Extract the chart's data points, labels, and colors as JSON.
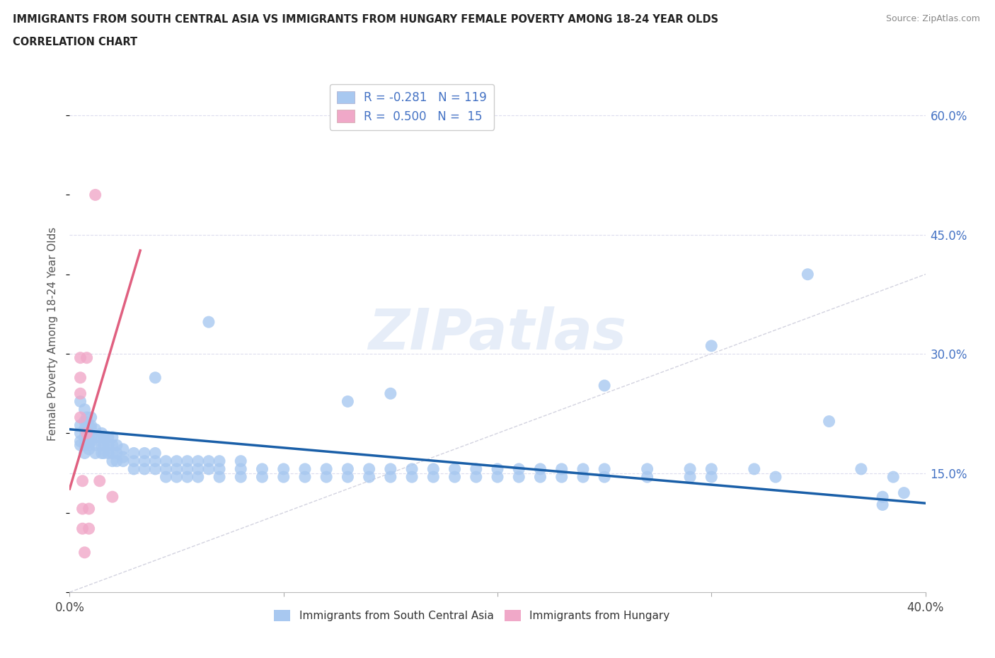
{
  "title_line1": "IMMIGRANTS FROM SOUTH CENTRAL ASIA VS IMMIGRANTS FROM HUNGARY FEMALE POVERTY AMONG 18-24 YEAR OLDS",
  "title_line2": "CORRELATION CHART",
  "source": "Source: ZipAtlas.com",
  "ylabel": "Female Poverty Among 18-24 Year Olds",
  "watermark": "ZIPatlas",
  "color_asia": "#a8c8f0",
  "color_hungary": "#f0a8c8",
  "color_asia_line": "#1a5fa8",
  "color_hungary_line": "#e06080",
  "color_diag": "#c8c8d8",
  "xlim": [
    0.0,
    0.4
  ],
  "ylim": [
    0.0,
    0.65
  ],
  "y_ticks": [
    0.15,
    0.3,
    0.45,
    0.6
  ],
  "x_ticks": [
    0.0,
    0.1,
    0.2,
    0.3,
    0.4
  ],
  "asia_line": [
    0.0,
    0.4,
    0.205,
    0.112
  ],
  "hungary_line_pts": [
    0.0,
    0.13,
    0.033,
    0.43
  ],
  "scatter_asia": [
    [
      0.005,
      0.24
    ],
    [
      0.005,
      0.21
    ],
    [
      0.005,
      0.2
    ],
    [
      0.005,
      0.19
    ],
    [
      0.005,
      0.185
    ],
    [
      0.007,
      0.23
    ],
    [
      0.007,
      0.215
    ],
    [
      0.007,
      0.205
    ],
    [
      0.007,
      0.195
    ],
    [
      0.007,
      0.185
    ],
    [
      0.007,
      0.175
    ],
    [
      0.008,
      0.22
    ],
    [
      0.008,
      0.21
    ],
    [
      0.008,
      0.2
    ],
    [
      0.008,
      0.19
    ],
    [
      0.009,
      0.21
    ],
    [
      0.009,
      0.205
    ],
    [
      0.009,
      0.195
    ],
    [
      0.009,
      0.185
    ],
    [
      0.009,
      0.18
    ],
    [
      0.01,
      0.22
    ],
    [
      0.01,
      0.21
    ],
    [
      0.01,
      0.205
    ],
    [
      0.01,
      0.195
    ],
    [
      0.01,
      0.19
    ],
    [
      0.012,
      0.205
    ],
    [
      0.012,
      0.195
    ],
    [
      0.012,
      0.185
    ],
    [
      0.012,
      0.175
    ],
    [
      0.015,
      0.2
    ],
    [
      0.015,
      0.195
    ],
    [
      0.015,
      0.185
    ],
    [
      0.015,
      0.175
    ],
    [
      0.016,
      0.195
    ],
    [
      0.016,
      0.185
    ],
    [
      0.016,
      0.175
    ],
    [
      0.018,
      0.195
    ],
    [
      0.018,
      0.185
    ],
    [
      0.018,
      0.175
    ],
    [
      0.02,
      0.195
    ],
    [
      0.02,
      0.185
    ],
    [
      0.02,
      0.175
    ],
    [
      0.02,
      0.165
    ],
    [
      0.022,
      0.185
    ],
    [
      0.022,
      0.175
    ],
    [
      0.022,
      0.165
    ],
    [
      0.025,
      0.18
    ],
    [
      0.025,
      0.17
    ],
    [
      0.025,
      0.165
    ],
    [
      0.03,
      0.175
    ],
    [
      0.03,
      0.165
    ],
    [
      0.03,
      0.155
    ],
    [
      0.035,
      0.175
    ],
    [
      0.035,
      0.165
    ],
    [
      0.035,
      0.155
    ],
    [
      0.04,
      0.27
    ],
    [
      0.04,
      0.175
    ],
    [
      0.04,
      0.165
    ],
    [
      0.04,
      0.155
    ],
    [
      0.045,
      0.165
    ],
    [
      0.045,
      0.155
    ],
    [
      0.045,
      0.145
    ],
    [
      0.05,
      0.165
    ],
    [
      0.05,
      0.155
    ],
    [
      0.05,
      0.145
    ],
    [
      0.055,
      0.165
    ],
    [
      0.055,
      0.155
    ],
    [
      0.055,
      0.145
    ],
    [
      0.06,
      0.165
    ],
    [
      0.06,
      0.155
    ],
    [
      0.06,
      0.145
    ],
    [
      0.065,
      0.34
    ],
    [
      0.065,
      0.165
    ],
    [
      0.065,
      0.155
    ],
    [
      0.07,
      0.165
    ],
    [
      0.07,
      0.155
    ],
    [
      0.07,
      0.145
    ],
    [
      0.08,
      0.165
    ],
    [
      0.08,
      0.155
    ],
    [
      0.08,
      0.145
    ],
    [
      0.09,
      0.155
    ],
    [
      0.09,
      0.145
    ],
    [
      0.1,
      0.155
    ],
    [
      0.1,
      0.145
    ],
    [
      0.11,
      0.155
    ],
    [
      0.11,
      0.145
    ],
    [
      0.12,
      0.155
    ],
    [
      0.12,
      0.145
    ],
    [
      0.13,
      0.24
    ],
    [
      0.13,
      0.155
    ],
    [
      0.13,
      0.145
    ],
    [
      0.14,
      0.155
    ],
    [
      0.14,
      0.145
    ],
    [
      0.15,
      0.25
    ],
    [
      0.15,
      0.155
    ],
    [
      0.15,
      0.145
    ],
    [
      0.16,
      0.155
    ],
    [
      0.16,
      0.145
    ],
    [
      0.17,
      0.155
    ],
    [
      0.17,
      0.145
    ],
    [
      0.18,
      0.155
    ],
    [
      0.18,
      0.145
    ],
    [
      0.19,
      0.155
    ],
    [
      0.19,
      0.145
    ],
    [
      0.2,
      0.155
    ],
    [
      0.2,
      0.145
    ],
    [
      0.21,
      0.155
    ],
    [
      0.21,
      0.145
    ],
    [
      0.22,
      0.155
    ],
    [
      0.22,
      0.145
    ],
    [
      0.23,
      0.155
    ],
    [
      0.23,
      0.145
    ],
    [
      0.24,
      0.155
    ],
    [
      0.24,
      0.145
    ],
    [
      0.25,
      0.26
    ],
    [
      0.25,
      0.155
    ],
    [
      0.25,
      0.145
    ],
    [
      0.27,
      0.155
    ],
    [
      0.27,
      0.145
    ],
    [
      0.29,
      0.155
    ],
    [
      0.29,
      0.145
    ],
    [
      0.3,
      0.31
    ],
    [
      0.3,
      0.155
    ],
    [
      0.3,
      0.145
    ],
    [
      0.32,
      0.155
    ],
    [
      0.33,
      0.145
    ],
    [
      0.345,
      0.4
    ],
    [
      0.355,
      0.215
    ],
    [
      0.37,
      0.155
    ],
    [
      0.38,
      0.12
    ],
    [
      0.38,
      0.11
    ],
    [
      0.385,
      0.145
    ],
    [
      0.39,
      0.125
    ]
  ],
  "scatter_hungary": [
    [
      0.005,
      0.295
    ],
    [
      0.005,
      0.27
    ],
    [
      0.005,
      0.25
    ],
    [
      0.005,
      0.22
    ],
    [
      0.006,
      0.14
    ],
    [
      0.006,
      0.105
    ],
    [
      0.006,
      0.08
    ],
    [
      0.007,
      0.05
    ],
    [
      0.008,
      0.295
    ],
    [
      0.008,
      0.2
    ],
    [
      0.009,
      0.105
    ],
    [
      0.009,
      0.08
    ],
    [
      0.012,
      0.5
    ],
    [
      0.014,
      0.14
    ],
    [
      0.02,
      0.12
    ]
  ]
}
